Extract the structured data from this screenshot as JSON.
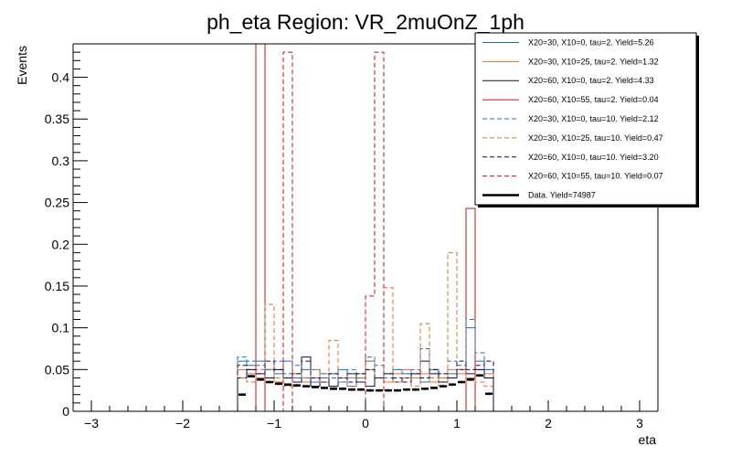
{
  "chart_data": {
    "type": "histogram",
    "title": "ph_eta Region: VR_2muOnZ_1ph",
    "xlabel": "eta",
    "ylabel": "Events",
    "xlim": [
      -3.2,
      3.2
    ],
    "ylim": [
      0,
      0.44
    ],
    "xticks": [
      -3,
      -2,
      -1,
      0,
      1,
      2,
      3
    ],
    "yticks": [
      0,
      0.05,
      0.1,
      0.15,
      0.2,
      0.25,
      0.3,
      0.35,
      0.4
    ],
    "grid": false,
    "legend_position": "top-right",
    "bins": [
      -1.4,
      -1.3,
      -1.2,
      -1.1,
      -1.0,
      -0.9,
      -0.8,
      -0.7,
      -0.6,
      -0.5,
      -0.4,
      -0.3,
      -0.2,
      -0.1,
      0.0,
      0.1,
      0.2,
      0.3,
      0.4,
      0.5,
      0.6,
      0.7,
      0.8,
      0.9,
      1.0,
      1.1,
      1.2,
      1.3,
      1.4
    ],
    "series": [
      {
        "name": "X20=30, X10=0, tau=2. Yield=5.26",
        "color": "#1f6fbf",
        "dashed": false,
        "values": [
          0.06,
          0.055,
          0.06,
          0.05,
          0.045,
          0.06,
          0.04,
          0.05,
          0.035,
          0.04,
          0.045,
          0.05,
          0.03,
          0.04,
          0.06,
          0.04,
          0.035,
          0.05,
          0.045,
          0.04,
          0.035,
          0.05,
          0.04,
          0.045,
          0.05,
          0.1,
          0.06,
          0.05
        ]
      },
      {
        "name": "X20=30, X10=25, tau=2. Yield=1.32",
        "color": "#e07020",
        "dashed": false,
        "values": [
          0.05,
          0.045,
          0.04,
          0.05,
          0.035,
          0.04,
          0.045,
          0.035,
          0.04,
          0.045,
          0.03,
          0.035,
          0.04,
          0.045,
          0.05,
          0.04,
          0.035,
          0.045,
          0.05,
          0.04,
          0.045,
          0.035,
          0.04,
          0.05,
          0.045,
          0.04,
          0.05,
          0.045
        ]
      },
      {
        "name": "X20=60, X10=0, tau=2. Yield=4.33",
        "color": "#0a0a50",
        "dashed": false,
        "values": [
          0.04,
          0.05,
          0.045,
          0.04,
          0.05,
          0.04,
          0.035,
          0.065,
          0.03,
          0.035,
          0.03,
          0.04,
          0.045,
          0.035,
          0.03,
          0.04,
          0.045,
          0.035,
          0.04,
          0.045,
          0.06,
          0.045,
          0.035,
          0.04,
          0.05,
          0.045,
          0.05,
          0.04
        ]
      },
      {
        "name": "X20=60, X10=55, tau=2. Yield=0.04",
        "color": "#cc1111",
        "dashed": false,
        "values": [
          0,
          0,
          0.44,
          0,
          0,
          0,
          0,
          0,
          0,
          0,
          0,
          0,
          0,
          0,
          0,
          0,
          0,
          0,
          0,
          0,
          0,
          0,
          0,
          0,
          0,
          0.243,
          0,
          0
        ]
      },
      {
        "name": "X20=30, X10=0, tau=10. Yield=2.12",
        "color": "#1f6fbf",
        "dashed": true,
        "values": [
          0.065,
          0.06,
          0.055,
          0.05,
          0.06,
          0.045,
          0.055,
          0.04,
          0.05,
          0.045,
          0.04,
          0.035,
          0.05,
          0.045,
          0.065,
          0.055,
          0.04,
          0.05,
          0.045,
          0.05,
          0.075,
          0.05,
          0.045,
          0.06,
          0.055,
          0.11,
          0.07,
          0.05
        ]
      },
      {
        "name": "X20=30, X10=25, tau=10. Yield=0.47",
        "color": "#e07020",
        "dashed": true,
        "values": [
          0.04,
          0.035,
          0.05,
          0.128,
          0.04,
          0.03,
          0.045,
          0.04,
          0.05,
          0.035,
          0.085,
          0.04,
          0.03,
          0.04,
          0.06,
          0.04,
          0.148,
          0.035,
          0.04,
          0.03,
          0.105,
          0.04,
          0.03,
          0.19,
          0.05,
          0.04,
          0.035,
          0.03
        ]
      },
      {
        "name": "X20=60, X10=0, tau=10. Yield=3.20",
        "color": "#0a0a50",
        "dashed": true,
        "values": [
          0.055,
          0.05,
          0.045,
          0.06,
          0.05,
          0.04,
          0.045,
          0.06,
          0.04,
          0.035,
          0.045,
          0.04,
          0.035,
          0.045,
          0.05,
          0.04,
          0.045,
          0.04,
          0.035,
          0.045,
          0.04,
          0.05,
          0.045,
          0.04,
          0.06,
          0.05,
          0.055,
          0.06
        ]
      },
      {
        "name": "X20=60, X10=55, tau=10. Yield=0.07",
        "color": "#cc1111",
        "dashed": true,
        "values": [
          0,
          0,
          0,
          0,
          0,
          0.43,
          0,
          0,
          0,
          0,
          0,
          0,
          0,
          0,
          0.138,
          0.43,
          0,
          0,
          0,
          0,
          0,
          0,
          0,
          0,
          0,
          0,
          0,
          0
        ]
      },
      {
        "name": "Data. Yield=74987",
        "color": "#000000",
        "dashed": false,
        "points": true,
        "values": [
          0.02,
          0.042,
          0.038,
          0.035,
          0.033,
          0.032,
          0.031,
          0.03,
          0.029,
          0.028,
          0.027,
          0.027,
          0.026,
          0.026,
          0.025,
          0.025,
          0.025,
          0.025,
          0.026,
          0.026,
          0.027,
          0.028,
          0.03,
          0.032,
          0.035,
          0.038,
          0.043,
          0.021
        ]
      }
    ]
  }
}
